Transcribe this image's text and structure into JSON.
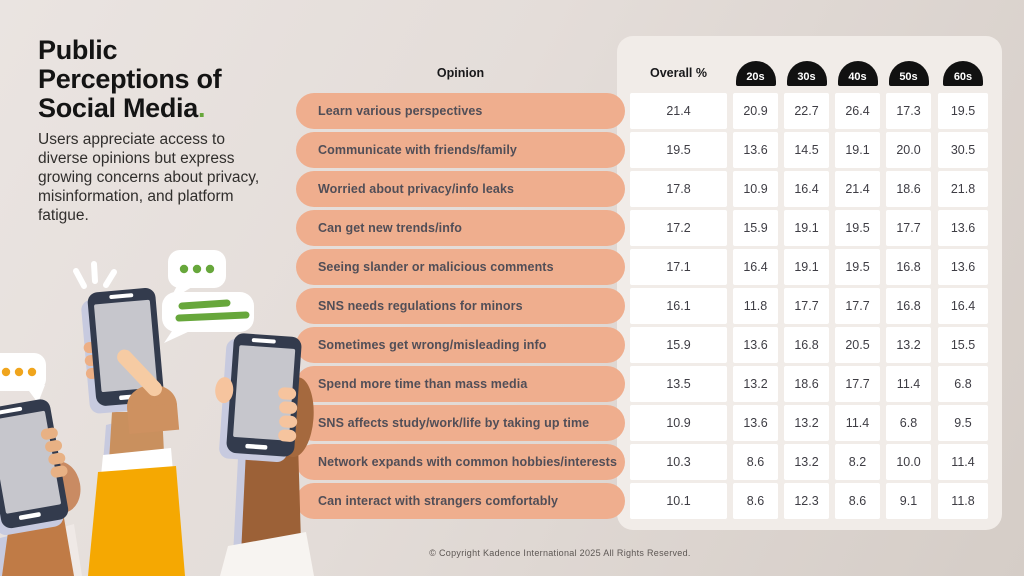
{
  "page": {
    "title_lines": [
      "Public",
      "Perceptions of",
      "Social Media"
    ],
    "title_period": ".",
    "subtitle": "Users appreciate access to diverse opinions but express growing concerns about privacy, misinformation, and platform fatigue.",
    "footer": "© Copyright Kadence International 2025 All Rights Reserved."
  },
  "colors": {
    "accent_green": "#67A73B",
    "pill_salmon": "#EFAE8E",
    "badge_black": "#111111",
    "panel": "#F1ECE8",
    "background": "#E4DDD9",
    "sleeve_yellow": "#F5A802"
  },
  "chart_data": {
    "type": "table",
    "title": "Public Perceptions of Social Media",
    "columns": [
      "Opinion",
      "Overall %",
      "20s",
      "30s",
      "40s",
      "50s",
      "60s"
    ],
    "rows": [
      {
        "label": "Learn various perspectives",
        "overall": "21.4",
        "values": [
          "20.9",
          "22.7",
          "26.4",
          "17.3",
          "19.5"
        ]
      },
      {
        "label": "Communicate with friends/family",
        "overall": "19.5",
        "values": [
          "13.6",
          "14.5",
          "19.1",
          "20.0",
          "30.5"
        ]
      },
      {
        "label": "Worried about privacy/info leaks",
        "overall": "17.8",
        "values": [
          "10.9",
          "16.4",
          "21.4",
          "18.6",
          "21.8"
        ]
      },
      {
        "label": "Can get new trends/info",
        "overall": "17.2",
        "values": [
          "15.9",
          "19.1",
          "19.5",
          "17.7",
          "13.6"
        ]
      },
      {
        "label": "Seeing slander or malicious comments",
        "overall": "17.1",
        "values": [
          "16.4",
          "19.1",
          "19.5",
          "16.8",
          "13.6"
        ]
      },
      {
        "label": "SNS needs regulations for minors",
        "overall": "16.1",
        "values": [
          "11.8",
          "17.7",
          "17.7",
          "16.8",
          "16.4"
        ]
      },
      {
        "label": "Sometimes get wrong/misleading info",
        "overall": "15.9",
        "values": [
          "13.6",
          "16.8",
          "20.5",
          "13.2",
          "15.5"
        ]
      },
      {
        "label": "Spend more time than mass media",
        "overall": "13.5",
        "values": [
          "13.2",
          "18.6",
          "17.7",
          "11.4",
          "6.8"
        ]
      },
      {
        "label": "SNS affects study/work/life by taking up time",
        "overall": "10.9",
        "values": [
          "13.6",
          "13.2",
          "11.4",
          "6.8",
          "9.5"
        ]
      },
      {
        "label": "Network expands with common hobbies/interests",
        "overall": "10.3",
        "values": [
          "8.6",
          "13.2",
          "8.2",
          "10.0",
          "11.4"
        ]
      },
      {
        "label": "Can interact with strangers comfortably",
        "overall": "10.1",
        "values": [
          "8.6",
          "12.3",
          "8.6",
          "9.1",
          "11.8"
        ]
      }
    ]
  }
}
